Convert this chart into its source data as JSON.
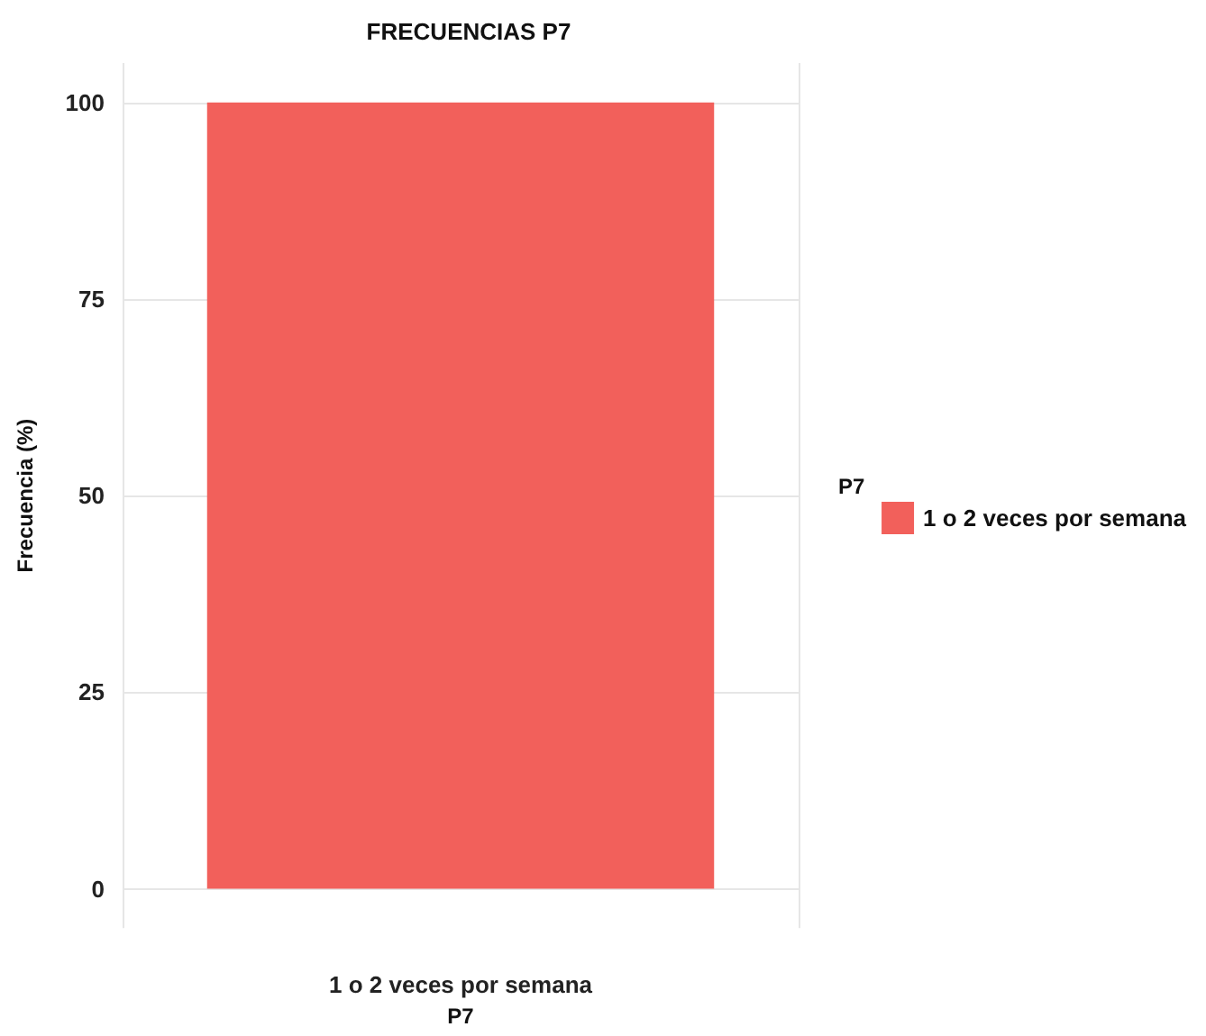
{
  "chart_data": {
    "type": "bar",
    "title": "FRECUENCIAS P7",
    "xlabel": "P7",
    "ylabel": "Frecuencia (%)",
    "legend_title": "P7",
    "categories": [
      "1 o 2 veces por semana"
    ],
    "series": [
      {
        "name": "1 o 2 veces por semana",
        "color": "#f2605b",
        "values": [
          100
        ]
      }
    ],
    "ylim": [
      -5,
      105
    ],
    "yticks": [
      0,
      25,
      50,
      75,
      100
    ],
    "grid": true,
    "legend": "right"
  }
}
